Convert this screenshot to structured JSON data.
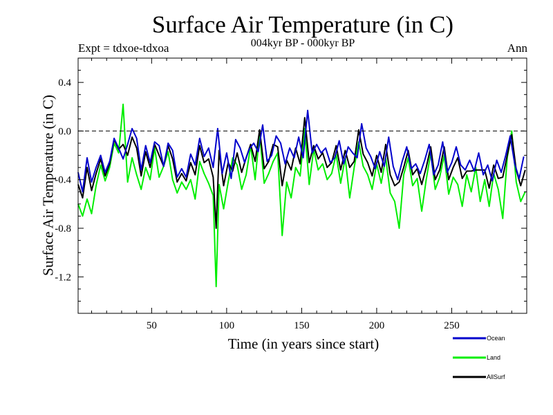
{
  "chart_data": {
    "type": "line",
    "title": "Surface Air Temperature (in C)",
    "subtitle": "004kyr BP - 000kyr BP",
    "annotation_left": "Expt = tdxoe-tdxoa",
    "annotation_right": "Ann",
    "xlabel": "Time (in years since start)",
    "ylabel": "Surface Air Temperature (in C)",
    "xlim": [
      1,
      300
    ],
    "ylim": [
      -1.5,
      0.6
    ],
    "x_ticks": [
      50,
      100,
      150,
      200,
      250
    ],
    "y_ticks": [
      0.4,
      0.0,
      -0.4,
      -0.8,
      -1.2
    ],
    "y_tick_labels": [
      "0.4",
      "0.0",
      "-0.4",
      "-0.8",
      "-1.2"
    ],
    "zero_line": true,
    "grid": false,
    "legend_position": "bottom-right, below plot",
    "series": [
      {
        "name": "Ocean",
        "color": "#0000cc",
        "points": [
          [
            1,
            -0.34
          ],
          [
            4,
            -0.5
          ],
          [
            7,
            -0.22
          ],
          [
            10,
            -0.42
          ],
          [
            13,
            -0.3
          ],
          [
            16,
            -0.2
          ],
          [
            19,
            -0.34
          ],
          [
            22,
            -0.25
          ],
          [
            25,
            -0.06
          ],
          [
            28,
            -0.14
          ],
          [
            31,
            -0.23
          ],
          [
            34,
            -0.11
          ],
          [
            37,
            0.02
          ],
          [
            40,
            -0.06
          ],
          [
            43,
            -0.32
          ],
          [
            46,
            -0.12
          ],
          [
            49,
            -0.26
          ],
          [
            52,
            -0.09
          ],
          [
            55,
            -0.12
          ],
          [
            58,
            -0.29
          ],
          [
            61,
            -0.1
          ],
          [
            64,
            -0.16
          ],
          [
            67,
            -0.38
          ],
          [
            70,
            -0.31
          ],
          [
            73,
            -0.38
          ],
          [
            76,
            -0.19
          ],
          [
            79,
            -0.28
          ],
          [
            82,
            -0.06
          ],
          [
            85,
            -0.21
          ],
          [
            88,
            -0.14
          ],
          [
            91,
            -0.3
          ],
          [
            94,
            0.02
          ],
          [
            97,
            -0.35
          ],
          [
            100,
            -0.18
          ],
          [
            103,
            -0.39
          ],
          [
            106,
            -0.07
          ],
          [
            109,
            -0.14
          ],
          [
            112,
            -0.26
          ],
          [
            115,
            -0.15
          ],
          [
            118,
            -0.1
          ],
          [
            121,
            -0.17
          ],
          [
            124,
            0.05
          ],
          [
            127,
            -0.25
          ],
          [
            130,
            -0.2
          ],
          [
            133,
            -0.04
          ],
          [
            136,
            -0.1
          ],
          [
            139,
            -0.27
          ],
          [
            142,
            -0.14
          ],
          [
            145,
            -0.22
          ],
          [
            148,
            -0.05
          ],
          [
            151,
            -0.22
          ],
          [
            154,
            0.17
          ],
          [
            157,
            -0.18
          ],
          [
            160,
            -0.11
          ],
          [
            163,
            -0.18
          ],
          [
            166,
            -0.14
          ],
          [
            169,
            -0.26
          ],
          [
            172,
            -0.22
          ],
          [
            175,
            -0.08
          ],
          [
            178,
            -0.27
          ],
          [
            181,
            -0.13
          ],
          [
            184,
            -0.18
          ],
          [
            187,
            -0.22
          ],
          [
            190,
            0.06
          ],
          [
            193,
            -0.14
          ],
          [
            196,
            -0.21
          ],
          [
            199,
            -0.31
          ],
          [
            202,
            -0.17
          ],
          [
            205,
            -0.29
          ],
          [
            208,
            -0.05
          ],
          [
            211,
            -0.29
          ],
          [
            214,
            -0.4
          ],
          [
            217,
            -0.25
          ],
          [
            220,
            -0.13
          ],
          [
            223,
            -0.31
          ],
          [
            226,
            -0.27
          ],
          [
            229,
            -0.35
          ],
          [
            232,
            -0.24
          ],
          [
            235,
            -0.11
          ],
          [
            238,
            -0.36
          ],
          [
            241,
            -0.28
          ],
          [
            244,
            -0.09
          ],
          [
            247,
            -0.34
          ],
          [
            250,
            -0.26
          ],
          [
            253,
            -0.13
          ],
          [
            256,
            -0.28
          ],
          [
            259,
            -0.32
          ],
          [
            262,
            -0.24
          ],
          [
            265,
            -0.33
          ],
          [
            268,
            -0.18
          ],
          [
            271,
            -0.36
          ],
          [
            274,
            -0.28
          ],
          [
            277,
            -0.41
          ],
          [
            280,
            -0.24
          ],
          [
            283,
            -0.34
          ],
          [
            286,
            -0.2
          ],
          [
            289,
            -0.04
          ],
          [
            292,
            -0.27
          ],
          [
            295,
            -0.39
          ],
          [
            298,
            -0.21
          ]
        ]
      },
      {
        "name": "Land",
        "color": "#00ee00",
        "points": [
          [
            1,
            -0.6
          ],
          [
            4,
            -0.7
          ],
          [
            7,
            -0.56
          ],
          [
            10,
            -0.68
          ],
          [
            13,
            -0.45
          ],
          [
            16,
            -0.28
          ],
          [
            19,
            -0.41
          ],
          [
            22,
            -0.3
          ],
          [
            25,
            -0.1
          ],
          [
            28,
            -0.18
          ],
          [
            31,
            0.22
          ],
          [
            34,
            -0.42
          ],
          [
            37,
            -0.22
          ],
          [
            40,
            -0.36
          ],
          [
            43,
            -0.48
          ],
          [
            46,
            -0.3
          ],
          [
            49,
            -0.4
          ],
          [
            52,
            -0.14
          ],
          [
            55,
            -0.38
          ],
          [
            58,
            -0.29
          ],
          [
            61,
            -0.17
          ],
          [
            64,
            -0.4
          ],
          [
            67,
            -0.51
          ],
          [
            70,
            -0.42
          ],
          [
            73,
            -0.48
          ],
          [
            76,
            -0.4
          ],
          [
            79,
            -0.56
          ],
          [
            82,
            -0.25
          ],
          [
            85,
            -0.35
          ],
          [
            88,
            -0.43
          ],
          [
            91,
            -0.53
          ],
          [
            93,
            -1.28
          ],
          [
            95,
            -0.44
          ],
          [
            98,
            -0.64
          ],
          [
            101,
            -0.42
          ],
          [
            104,
            -0.22
          ],
          [
            107,
            -0.28
          ],
          [
            110,
            -0.48
          ],
          [
            113,
            -0.36
          ],
          [
            116,
            -0.12
          ],
          [
            119,
            -0.4
          ],
          [
            122,
            -0.02
          ],
          [
            125,
            -0.43
          ],
          [
            128,
            -0.35
          ],
          [
            131,
            -0.25
          ],
          [
            134,
            -0.18
          ],
          [
            137,
            -0.86
          ],
          [
            140,
            -0.42
          ],
          [
            143,
            -0.55
          ],
          [
            146,
            -0.3
          ],
          [
            149,
            -0.37
          ],
          [
            152,
            0.02
          ],
          [
            155,
            -0.44
          ],
          [
            158,
            -0.15
          ],
          [
            161,
            -0.32
          ],
          [
            164,
            -0.27
          ],
          [
            167,
            -0.4
          ],
          [
            170,
            -0.35
          ],
          [
            173,
            -0.19
          ],
          [
            176,
            -0.43
          ],
          [
            179,
            -0.22
          ],
          [
            182,
            -0.55
          ],
          [
            185,
            -0.3
          ],
          [
            188,
            -0.09
          ],
          [
            191,
            -0.29
          ],
          [
            194,
            -0.36
          ],
          [
            197,
            -0.48
          ],
          [
            200,
            -0.27
          ],
          [
            203,
            -0.43
          ],
          [
            206,
            -0.22
          ],
          [
            209,
            -0.51
          ],
          [
            212,
            -0.58
          ],
          [
            215,
            -0.8
          ],
          [
            218,
            -0.36
          ],
          [
            221,
            -0.22
          ],
          [
            224,
            -0.45
          ],
          [
            227,
            -0.39
          ],
          [
            230,
            -0.66
          ],
          [
            233,
            -0.4
          ],
          [
            236,
            -0.18
          ],
          [
            239,
            -0.48
          ],
          [
            242,
            -0.38
          ],
          [
            245,
            -0.2
          ],
          [
            248,
            -0.52
          ],
          [
            251,
            -0.38
          ],
          [
            254,
            -0.44
          ],
          [
            257,
            -0.62
          ],
          [
            260,
            -0.36
          ],
          [
            263,
            -0.5
          ],
          [
            266,
            -0.3
          ],
          [
            269,
            -0.58
          ],
          [
            272,
            -0.4
          ],
          [
            275,
            -0.62
          ],
          [
            278,
            -0.35
          ],
          [
            281,
            -0.48
          ],
          [
            284,
            -0.72
          ],
          [
            287,
            -0.22
          ],
          [
            290,
            0.0
          ],
          [
            293,
            -0.42
          ],
          [
            296,
            -0.58
          ],
          [
            299,
            -0.5
          ]
        ]
      },
      {
        "name": "AllSurf",
        "color": "#000000",
        "points": [
          [
            1,
            -0.44
          ],
          [
            4,
            -0.55
          ],
          [
            7,
            -0.3
          ],
          [
            10,
            -0.49
          ],
          [
            13,
            -0.35
          ],
          [
            16,
            -0.23
          ],
          [
            19,
            -0.37
          ],
          [
            22,
            -0.27
          ],
          [
            25,
            -0.07
          ],
          [
            28,
            -0.15
          ],
          [
            31,
            -0.11
          ],
          [
            34,
            -0.2
          ],
          [
            37,
            -0.05
          ],
          [
            40,
            -0.14
          ],
          [
            43,
            -0.37
          ],
          [
            46,
            -0.17
          ],
          [
            49,
            -0.3
          ],
          [
            52,
            -0.11
          ],
          [
            55,
            -0.2
          ],
          [
            58,
            -0.29
          ],
          [
            61,
            -0.12
          ],
          [
            64,
            -0.23
          ],
          [
            67,
            -0.42
          ],
          [
            70,
            -0.35
          ],
          [
            73,
            -0.41
          ],
          [
            76,
            -0.26
          ],
          [
            79,
            -0.36
          ],
          [
            82,
            -0.12
          ],
          [
            85,
            -0.26
          ],
          [
            88,
            -0.23
          ],
          [
            91,
            -0.38
          ],
          [
            93,
            -0.8
          ],
          [
            95,
            -0.16
          ],
          [
            98,
            -0.45
          ],
          [
            101,
            -0.26
          ],
          [
            104,
            -0.33
          ],
          [
            107,
            -0.18
          ],
          [
            110,
            -0.34
          ],
          [
            113,
            -0.22
          ],
          [
            116,
            -0.11
          ],
          [
            119,
            -0.25
          ],
          [
            122,
            0.01
          ],
          [
            125,
            -0.31
          ],
          [
            128,
            -0.25
          ],
          [
            131,
            -0.11
          ],
          [
            134,
            -0.13
          ],
          [
            137,
            -0.45
          ],
          [
            140,
            -0.24
          ],
          [
            143,
            -0.32
          ],
          [
            146,
            -0.14
          ],
          [
            149,
            -0.27
          ],
          [
            152,
            0.11
          ],
          [
            155,
            -0.26
          ],
          [
            158,
            -0.12
          ],
          [
            161,
            -0.23
          ],
          [
            164,
            -0.18
          ],
          [
            167,
            -0.3
          ],
          [
            170,
            -0.26
          ],
          [
            173,
            -0.12
          ],
          [
            176,
            -0.32
          ],
          [
            179,
            -0.16
          ],
          [
            182,
            -0.3
          ],
          [
            185,
            -0.25
          ],
          [
            188,
            0.01
          ],
          [
            191,
            -0.19
          ],
          [
            194,
            -0.26
          ],
          [
            197,
            -0.37
          ],
          [
            200,
            -0.2
          ],
          [
            203,
            -0.34
          ],
          [
            206,
            -0.11
          ],
          [
            209,
            -0.36
          ],
          [
            212,
            -0.45
          ],
          [
            215,
            -0.42
          ],
          [
            218,
            -0.3
          ],
          [
            221,
            -0.16
          ],
          [
            224,
            -0.36
          ],
          [
            227,
            -0.31
          ],
          [
            230,
            -0.44
          ],
          [
            233,
            -0.3
          ],
          [
            236,
            -0.13
          ],
          [
            239,
            -0.4
          ],
          [
            242,
            -0.32
          ],
          [
            245,
            -0.13
          ],
          [
            248,
            -0.4
          ],
          [
            251,
            -0.3
          ],
          [
            254,
            -0.22
          ],
          [
            257,
            -0.39
          ],
          [
            260,
            -0.33
          ],
          [
            263,
            -0.33
          ],
          [
            266,
            -0.32
          ],
          [
            269,
            -0.32
          ],
          [
            272,
            -0.32
          ],
          [
            275,
            -0.47
          ],
          [
            278,
            -0.28
          ],
          [
            281,
            -0.39
          ],
          [
            284,
            -0.38
          ],
          [
            287,
            -0.2
          ],
          [
            290,
            -0.03
          ],
          [
            293,
            -0.32
          ],
          [
            296,
            -0.45
          ],
          [
            299,
            -0.32
          ]
        ]
      }
    ]
  }
}
